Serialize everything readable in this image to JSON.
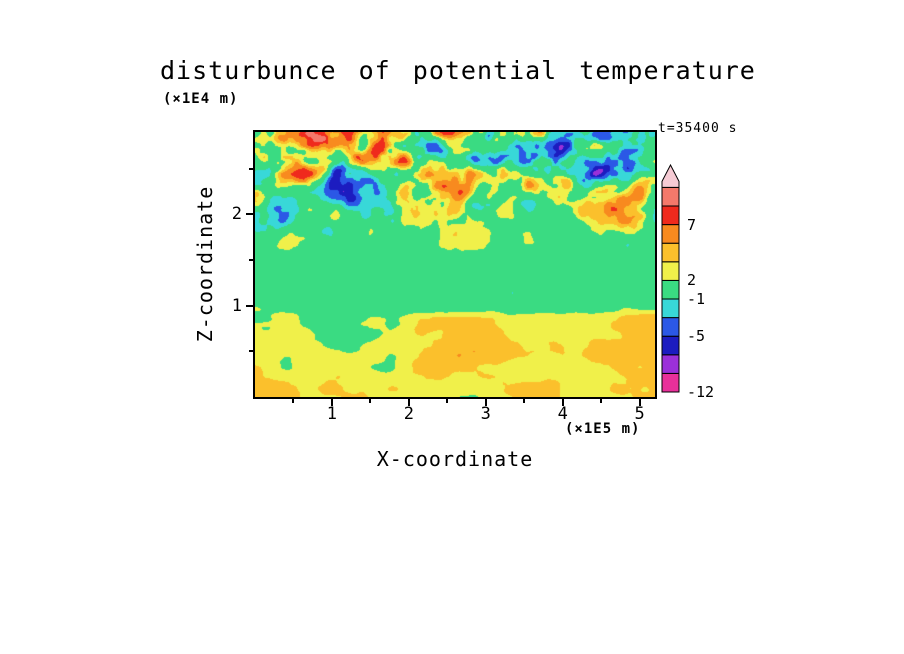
{
  "title": "disturbunce of potential temperature",
  "time_label": "t=35400 s",
  "axes": {
    "x": {
      "label": "X-coordinate",
      "unit": "(×1E5 m)",
      "ticks": [
        1,
        2,
        3,
        4,
        5
      ],
      "minor_ticks": [
        0.5,
        1.5,
        2.5,
        3.5,
        4.5
      ],
      "range": [
        0,
        5.2
      ]
    },
    "z": {
      "label": "Z-coordinate",
      "unit": "(×1E4 m)",
      "ticks": [
        1,
        2
      ],
      "minor_ticks": [
        0.5,
        1.5,
        2.5
      ],
      "range": [
        0,
        2.9
      ]
    }
  },
  "chart_data": {
    "type": "heatmap",
    "title": "disturbunce of potential temperature",
    "xlabel": "X-coordinate (×1E5 m)",
    "ylabel": "Z-coordinate (×1E4 m)",
    "x_range": [
      0,
      5.2
    ],
    "z_range": [
      0,
      2.9
    ],
    "x_ticks": [
      1,
      2,
      3,
      4,
      5
    ],
    "z_ticks": [
      1,
      2
    ],
    "time_annotation": "t=35400 s",
    "grid": false,
    "legend_position": "right-vertical-colorbar",
    "colorbar": {
      "labeled_levels": [
        -12,
        -5,
        -1,
        2,
        7
      ],
      "bin_lower_bounds": [
        -12,
        -9,
        -7,
        -5,
        -3,
        -1,
        2,
        3.5,
        5,
        7,
        9
      ],
      "colors": [
        "#E8309A",
        "#9B30D9",
        "#1C1CC0",
        "#2B58E6",
        "#38D8D8",
        "#3ADB82",
        "#F0F04A",
        "#FBC02C",
        "#F88A1F",
        "#EF2A1D",
        "#F4796B"
      ],
      "over_color": "#F6CBD4",
      "labels": [
        {
          "text": "-12",
          "boundary_index": 0
        },
        {
          "text": "-5",
          "boundary_index": 3
        },
        {
          "text": "-1",
          "boundary_index": 5
        },
        {
          "text": "2",
          "boundary_index": 6
        },
        {
          "text": "7",
          "boundary_index": 9
        }
      ]
    },
    "structure": {
      "lower_region": "z below ~1.0: yellow background (values 2 to 3.5) with horizontally elongated gold/orange patches (values 3.5 to 7)",
      "middle_band": "z ~1.0-1.5: nearly continuous green band (values -1 to 2) with small cyan and yellow pockets",
      "upper_region": "z above ~1.5: turbulent diagonal streaks of yellow, green, cyan, blue, dark blue, orange and red patches spanning roughly -12 to +9, strongest near the top edge"
    }
  }
}
